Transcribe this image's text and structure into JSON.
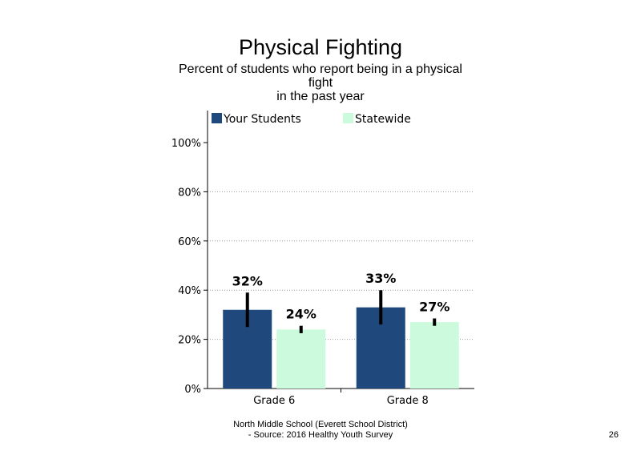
{
  "title": "Physical Fighting",
  "subtitle_lines": [
    "Percent of students  who report being in a physical",
    "fight",
    "in the past year"
  ],
  "footer_lines": [
    "North Middle  School (Everett School District)",
    "- Source: 2016 Healthy  Youth Survey"
  ],
  "page_number": "26",
  "chart_data": {
    "type": "bar",
    "categories": [
      "Grade 6",
      "Grade 8"
    ],
    "series": [
      {
        "name": "Your Students",
        "color": "#1f497d",
        "values": [
          32,
          33
        ],
        "labels": [
          "32%",
          "33%"
        ],
        "error_low": [
          25,
          26
        ],
        "error_high": [
          39,
          40
        ]
      },
      {
        "name": "Statewide",
        "color": "#ccfadc",
        "values": [
          24,
          27
        ],
        "labels": [
          "24%",
          "27%"
        ],
        "error_low": [
          22.5,
          25.5
        ],
        "error_high": [
          25.5,
          28.5
        ]
      }
    ],
    "yticks": [
      0,
      20,
      40,
      60,
      80,
      100
    ],
    "ytick_labels": [
      "0%",
      "20%",
      "40%",
      "60%",
      "80%",
      "100%"
    ],
    "ylim": [
      0,
      100
    ],
    "grid": "horizontal dotted",
    "legend": "top"
  }
}
